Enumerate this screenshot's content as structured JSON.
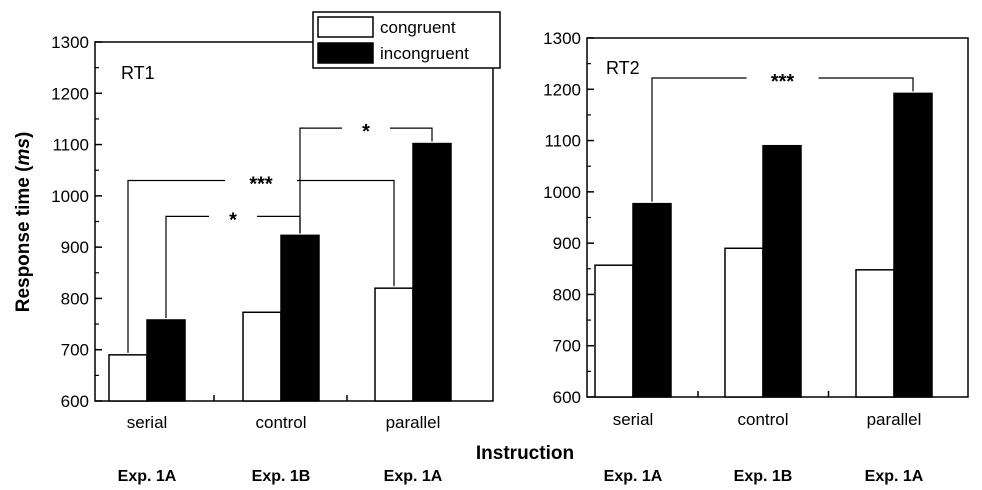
{
  "figure": {
    "ylabel_main": "Response time (",
    "ylabel_unit": "ms",
    "ylabel_close": ")",
    "xlabel": "Instruction",
    "legend": {
      "placement": "top-right of left panel",
      "items": [
        "congruent",
        "incongruent"
      ]
    },
    "colors": {
      "congruent": "#ffffff",
      "incongruent": "#000000",
      "axis": "#000000"
    }
  },
  "chart_data": [
    {
      "type": "bar",
      "panel_label": "RT1",
      "categories": [
        "serial",
        "control",
        "parallel"
      ],
      "experiments": [
        "Exp. 1A",
        "Exp. 1B",
        "Exp. 1A"
      ],
      "series": [
        {
          "name": "congruent",
          "values": [
            690,
            773,
            820
          ]
        },
        {
          "name": "incongruent",
          "values": [
            758,
            923,
            1102
          ]
        }
      ],
      "ylim": [
        600,
        1300
      ],
      "yticks": [
        600,
        700,
        800,
        900,
        1000,
        1100,
        1200,
        1300
      ],
      "grid": false,
      "annotations": [
        {
          "label": "***",
          "from": "serial congruent",
          "to": "parallel congruent",
          "level": 1030
        },
        {
          "label": "*",
          "from": "serial incongruent",
          "to": "control incongruent",
          "level": 960
        },
        {
          "label": "*",
          "from": "control incongruent",
          "to": "parallel incongruent",
          "level": 1132
        }
      ]
    },
    {
      "type": "bar",
      "panel_label": "RT2",
      "categories": [
        "serial",
        "control",
        "parallel"
      ],
      "experiments": [
        "Exp. 1A",
        "Exp. 1B",
        "Exp. 1A"
      ],
      "series": [
        {
          "name": "congruent",
          "values": [
            857,
            890,
            848
          ]
        },
        {
          "name": "incongruent",
          "values": [
            977,
            1090,
            1192
          ]
        }
      ],
      "ylim": [
        600,
        1300
      ],
      "yticks": [
        600,
        700,
        800,
        900,
        1000,
        1100,
        1200,
        1300
      ],
      "grid": false,
      "annotations": [
        {
          "label": "***",
          "from": "serial incongruent",
          "to": "parallel incongruent",
          "level": 1222
        }
      ]
    }
  ]
}
